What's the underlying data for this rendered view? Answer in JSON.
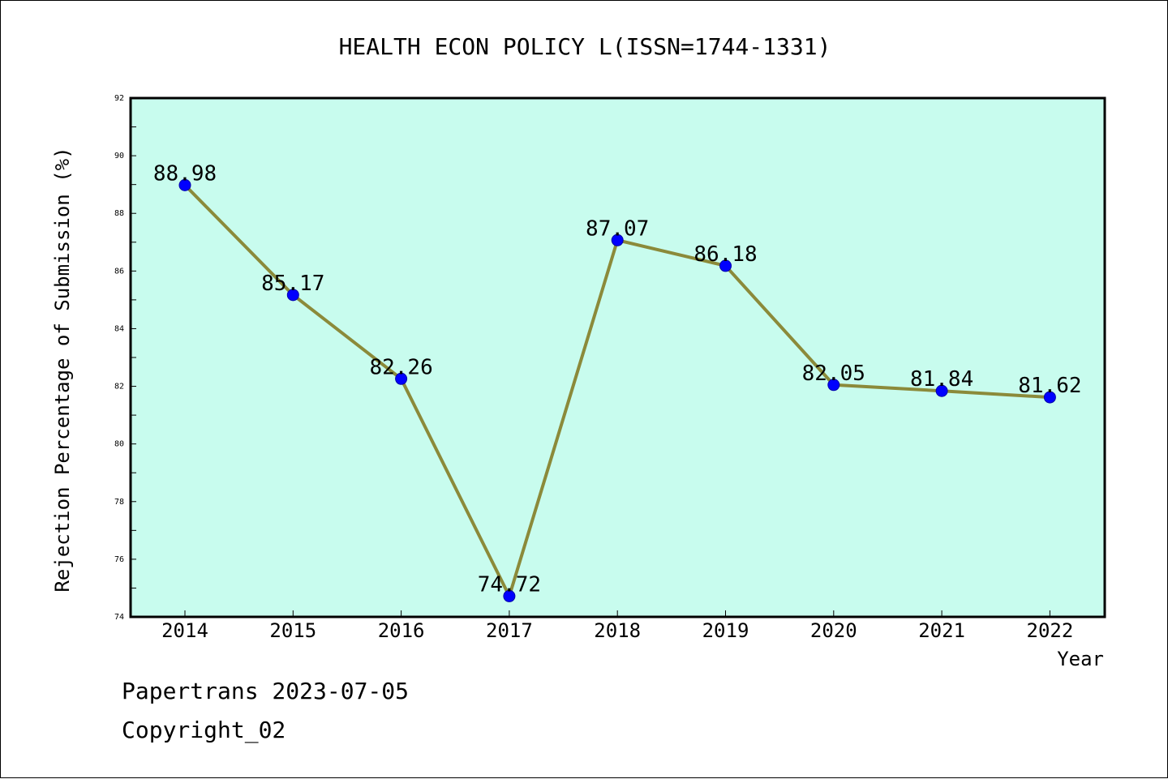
{
  "chart_data": {
    "type": "line",
    "title": "HEALTH ECON POLICY L(ISSN=1744-1331)",
    "xlabel": "Year",
    "ylabel": "Rejection Percentage of Submission (%)",
    "x": [
      "2014",
      "2015",
      "2016",
      "2017",
      "2018",
      "2019",
      "2020",
      "2021",
      "2022"
    ],
    "series": [
      {
        "values": [
          88.98,
          85.17,
          82.26,
          74.72,
          87.07,
          86.18,
          82.05,
          81.84,
          81.62
        ],
        "labels": [
          "88.98",
          "85.17",
          "82.26",
          "74.72",
          "87.07",
          "86.18",
          "82.05",
          "81.84",
          "81.62"
        ]
      }
    ],
    "ylim": [
      74,
      92
    ],
    "yticks": [
      "74",
      "76",
      "78",
      "80",
      "82",
      "84",
      "86",
      "88",
      "90",
      "92"
    ],
    "grid": false,
    "colors": {
      "plot_background": "#c8fcee",
      "line": "#8b8a3a",
      "marker": "#0000ff"
    }
  },
  "footer": {
    "line1": "Papertrans 2023-07-05",
    "line2": "Copyright_02"
  }
}
